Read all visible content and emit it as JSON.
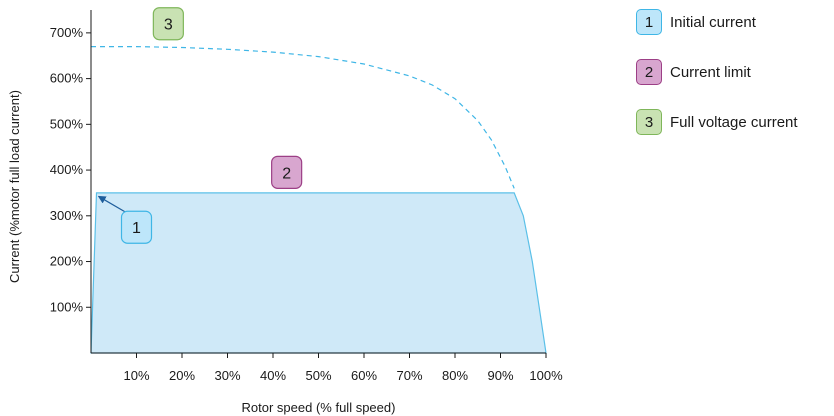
{
  "chart_data": {
    "type": "area",
    "title": "",
    "xlabel": "Rotor speed (% full speed)",
    "ylabel": "Current (%motor full load current)",
    "xlim": [
      0,
      100
    ],
    "ylim": [
      0,
      750
    ],
    "x_ticks": [
      10,
      20,
      30,
      40,
      50,
      60,
      70,
      80,
      90,
      100
    ],
    "x_tick_labels": [
      "10%",
      "20%",
      "30%",
      "40%",
      "50%",
      "60%",
      "70%",
      "80%",
      "90%",
      "100%"
    ],
    "y_ticks": [
      100,
      200,
      300,
      400,
      500,
      600,
      700
    ],
    "y_tick_labels": [
      "100%",
      "200%",
      "300%",
      "400%",
      "500%",
      "600%",
      "700%"
    ],
    "grid": false,
    "legend_position": "top-right",
    "series": [
      {
        "name": "Current limit",
        "style": "filled area",
        "color": "#5bc0e8",
        "fill": "#cfe9f8",
        "x": [
          0,
          1.2,
          93,
          95,
          97,
          98.5,
          100
        ],
        "y": [
          0,
          350,
          350,
          300,
          200,
          100,
          0
        ]
      },
      {
        "name": "Full voltage current",
        "style": "dashed",
        "color": "#3fb6e6",
        "x": [
          0,
          10,
          20,
          30,
          40,
          50,
          60,
          70,
          75,
          80,
          85,
          88,
          91,
          93
        ],
        "y": [
          670,
          670,
          668,
          664,
          658,
          648,
          632,
          606,
          586,
          556,
          508,
          466,
          408,
          360
        ]
      }
    ],
    "annotations": [
      {
        "number": "1",
        "target_x": 1.2,
        "target_y": 350,
        "x": 10,
        "y": 275,
        "arrow": true
      },
      {
        "number": "2",
        "x": 43,
        "y": 395,
        "arrow": false
      },
      {
        "number": "3",
        "x": 17,
        "y": 720,
        "arrow": false
      }
    ]
  },
  "legend": [
    {
      "number": "1",
      "label": "Initial current",
      "fill": "#bde6fa",
      "border": "#3fb6e6"
    },
    {
      "number": "2",
      "label": "Current limit",
      "fill": "#d8a6cf",
      "border": "#9c3f86"
    },
    {
      "number": "3",
      "label": "Full voltage current",
      "fill": "#c9e2b3",
      "border": "#7fb65a"
    }
  ]
}
